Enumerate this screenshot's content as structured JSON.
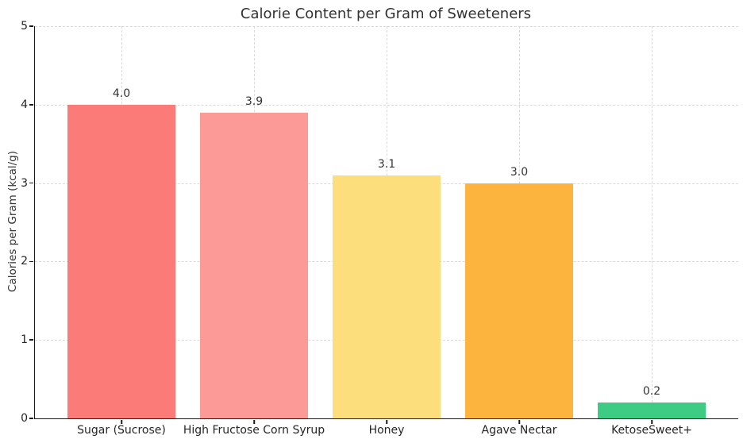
{
  "chart_data": {
    "type": "bar",
    "title": "Calorie Content per Gram of Sweeteners",
    "xlabel": "",
    "ylabel": "Calories per Gram (kcal/g)",
    "categories": [
      "Sugar (Sucrose)",
      "High Fructose Corn Syrup",
      "Honey",
      "Agave Nectar",
      "KetoseSweet+"
    ],
    "values": [
      4.0,
      3.9,
      3.1,
      3.0,
      0.2
    ],
    "value_labels": [
      "4.0",
      "3.9",
      "3.1",
      "3.0",
      "0.2"
    ],
    "bar_colors": [
      "#fb7b78",
      "#fc9a97",
      "#fcdf7c",
      "#fcb43e",
      "#3ecc84"
    ],
    "ylim": [
      0,
      5
    ],
    "yticks": [
      0,
      1,
      2,
      3,
      4,
      5
    ],
    "grid": {
      "visible": true,
      "style": "dashed",
      "color": "#d9d9d9",
      "axes": "both"
    },
    "legend": null,
    "colors": {
      "background": "#ffffff",
      "spine": "#1a1a1a",
      "grid": "#d9d9d9",
      "title_text": "#333333",
      "tick_text": "#262626"
    }
  }
}
